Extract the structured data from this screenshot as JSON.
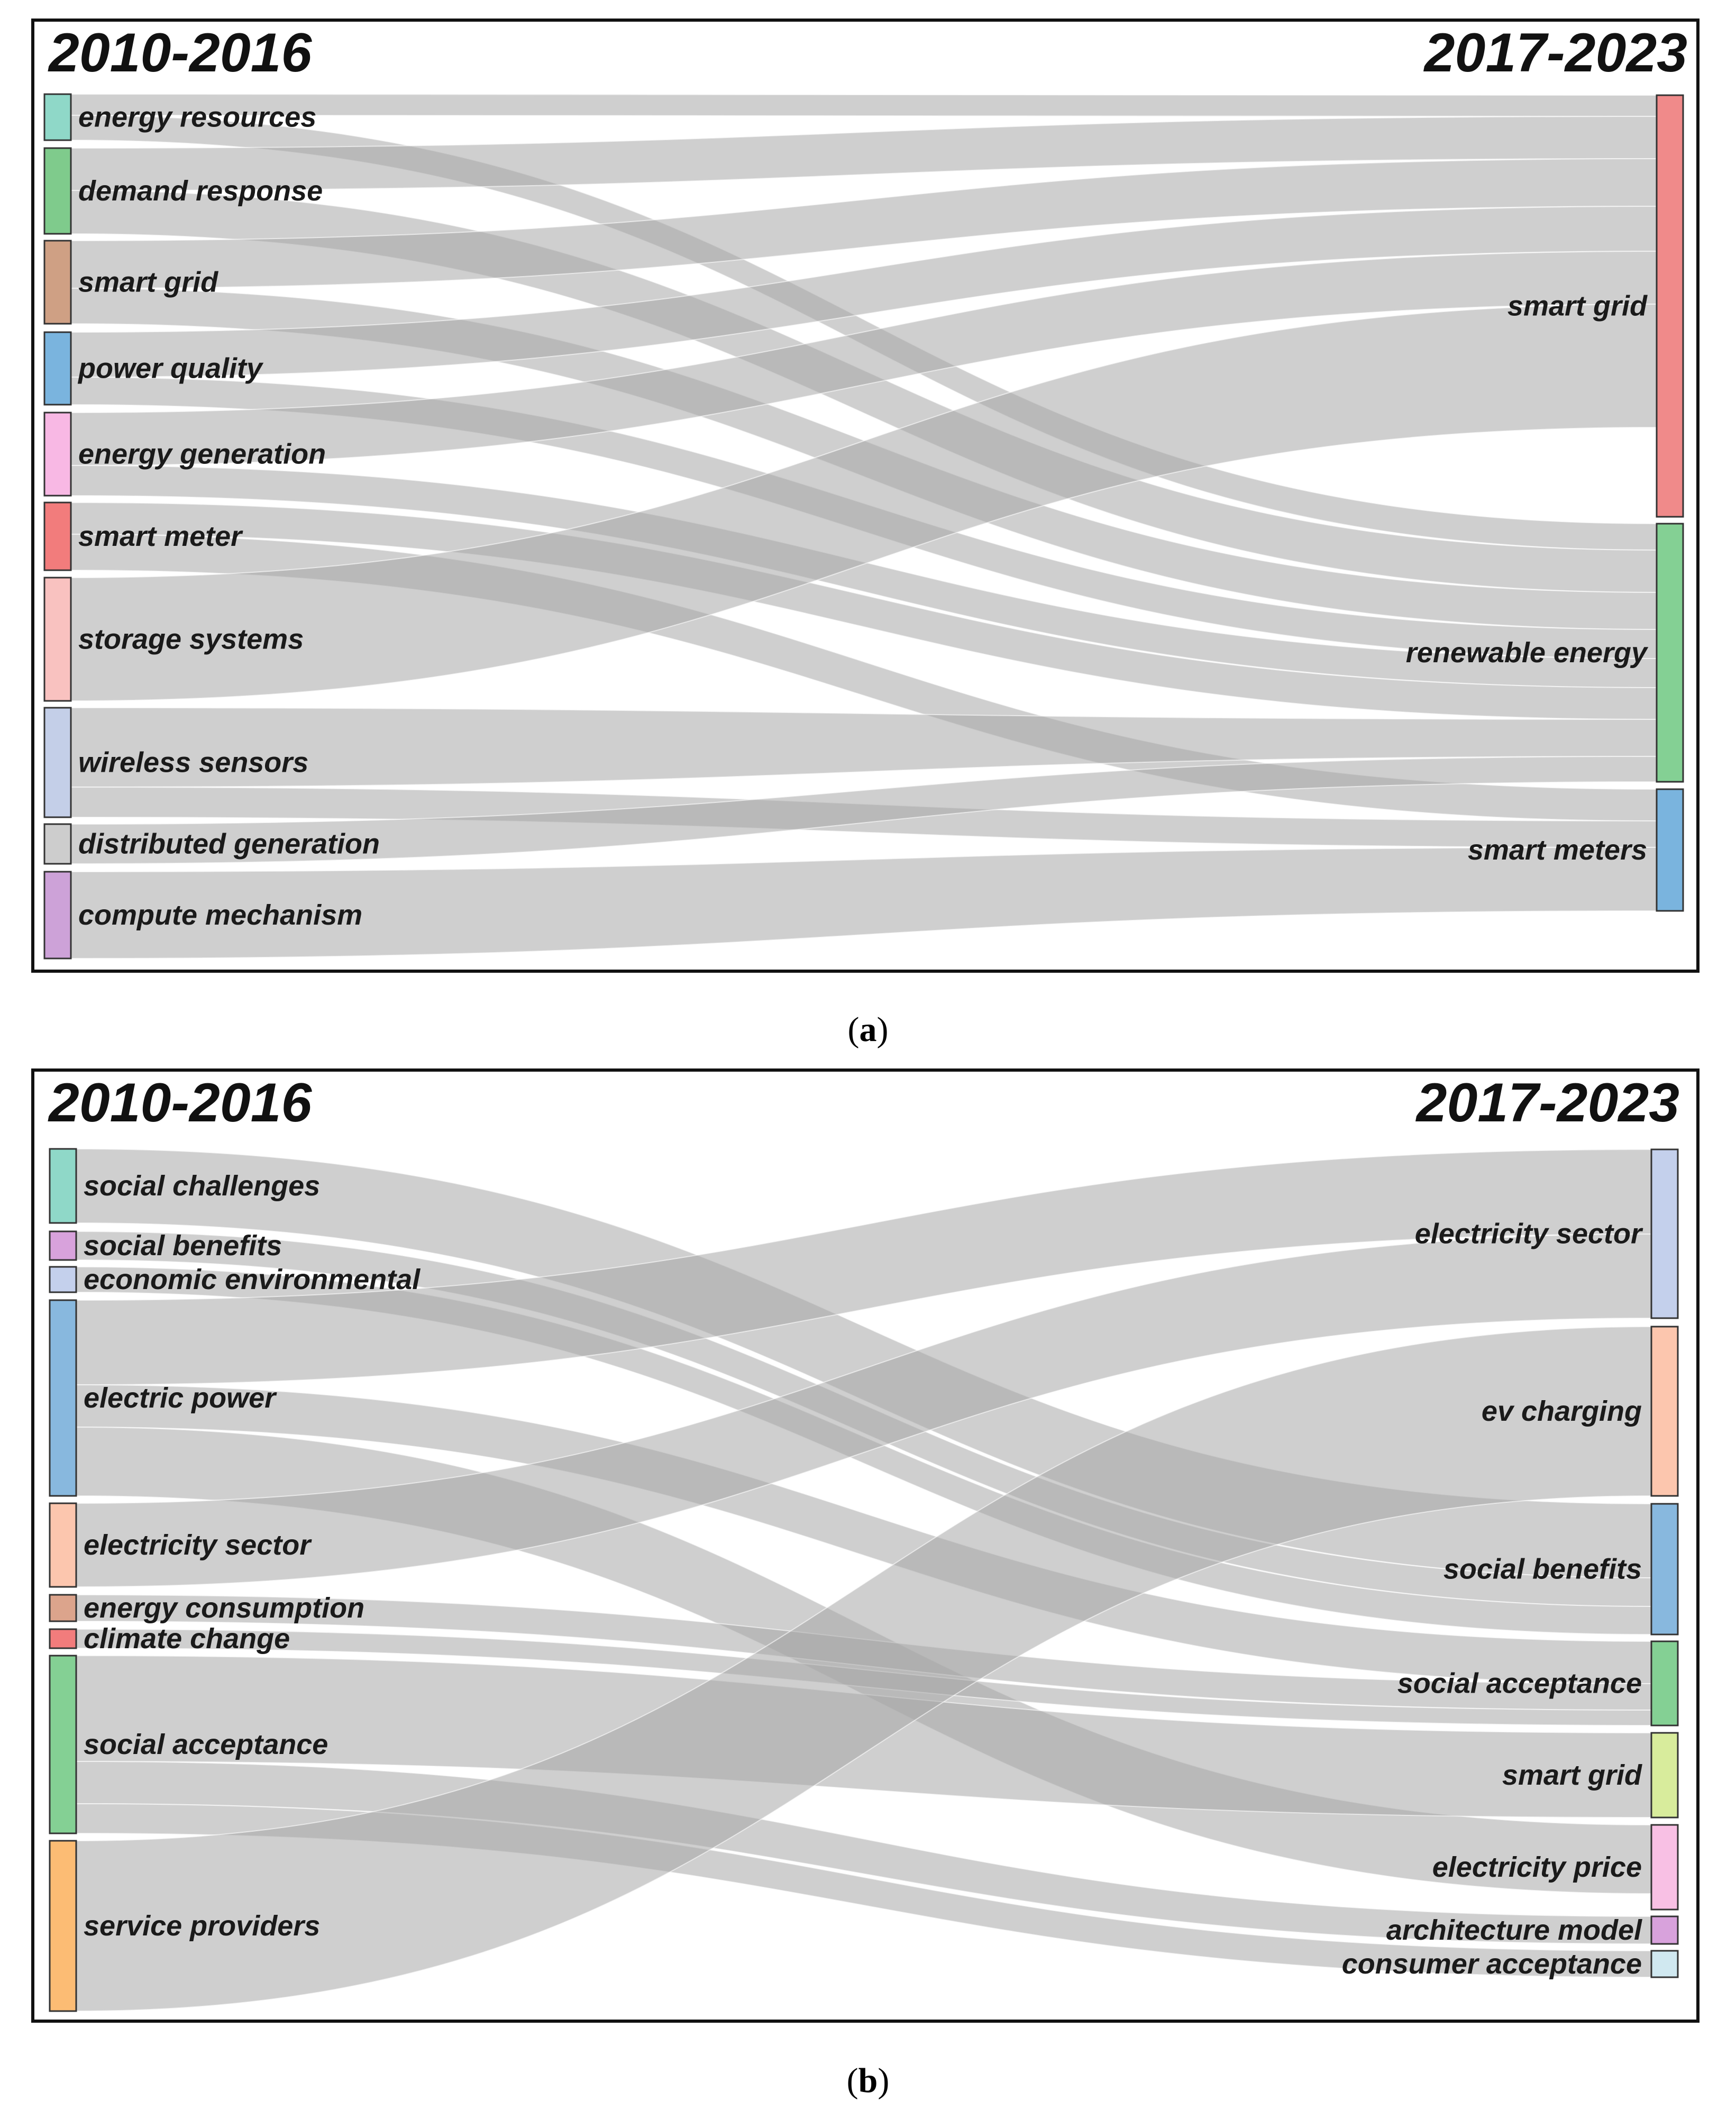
{
  "captions": [
    "a",
    "b"
  ],
  "panels": [
    {
      "id": "a",
      "left_period": "2010-2016",
      "right_period": "2017-2023",
      "left_nodes": [
        {
          "label": "energy resources",
          "color": "#8fd8c8"
        },
        {
          "label": "demand response",
          "color": "#7fcb8c"
        },
        {
          "label": "smart grid",
          "color": "#cfa084"
        },
        {
          "label": "power quality",
          "color": "#7ab4de"
        },
        {
          "label": "energy generation",
          "color": "#f8b8e4"
        },
        {
          "label": "smart meter",
          "color": "#f27c7c"
        },
        {
          "label": "storage systems",
          "color": "#f9c2c0"
        },
        {
          "label": "wireless sensors",
          "color": "#c4cfe8"
        },
        {
          "label": "distributed generation",
          "color": "#cdcdcd"
        },
        {
          "label": "compute mechanism",
          "color": "#cda2d8"
        }
      ],
      "right_nodes": [
        {
          "label": "smart grid",
          "color": "#f08a8a"
        },
        {
          "label": "renewable energy",
          "color": "#84d094"
        },
        {
          "label": "smart meters",
          "color": "#7ab4de"
        }
      ]
    },
    {
      "id": "b",
      "left_period": "2010-2016",
      "right_period": "2017-2023",
      "left_nodes": [
        {
          "label": "social challenges",
          "color": "#8fd8c8"
        },
        {
          "label": "social benefits",
          "color": "#d8a2dc"
        },
        {
          "label": "economic environmental",
          "color": "#c4d0ec"
        },
        {
          "label": "electric power",
          "color": "#88b8de"
        },
        {
          "label": "electricity sector",
          "color": "#fcc6ae"
        },
        {
          "label": "energy consumption",
          "color": "#dca48c"
        },
        {
          "label": "climate change",
          "color": "#f27c7c"
        },
        {
          "label": "social acceptance",
          "color": "#84d094"
        },
        {
          "label": "service providers",
          "color": "#fcbc74"
        }
      ],
      "right_nodes": [
        {
          "label": "electricity sector",
          "color": "#c4d0ec"
        },
        {
          "label": "ev charging",
          "color": "#fcc6ae"
        },
        {
          "label": "social benefits",
          "color": "#88b8de"
        },
        {
          "label": "social acceptance",
          "color": "#84d094"
        },
        {
          "label": "smart grid",
          "color": "#d8ec9c"
        },
        {
          "label": "electricity price",
          "color": "#f8c0e4"
        },
        {
          "label": "architecture model",
          "color": "#d8a2dc"
        },
        {
          "label": "consumer acceptance",
          "color": "#d0e8f0"
        }
      ]
    }
  ]
}
